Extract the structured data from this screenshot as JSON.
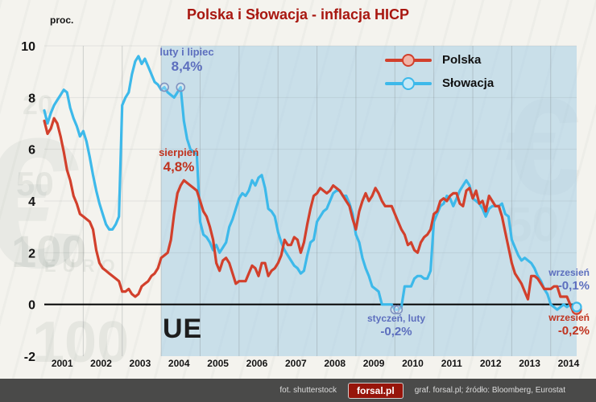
{
  "title": "Polska i Słowacja - inflacja HICP",
  "y_axis_unit_label": "proc.",
  "region_label": "UE",
  "legend": {
    "polska": "Polska",
    "slowacja": "Słowacja"
  },
  "annotations": {
    "sk_peak": {
      "line1": "luty i lipiec",
      "line2": "8,4%"
    },
    "pl_peak": {
      "line1": "sierpień",
      "line2": "4,8%"
    },
    "sk_low": {
      "line1": "styczeń, luty",
      "line2": "-0,2%"
    },
    "sk_last": {
      "line1": "wrzesień",
      "line2": "-0,1%"
    },
    "pl_last": {
      "line1": "wrzesień",
      "line2": "-0,2%"
    }
  },
  "footer": {
    "photo_credit": "fot. shutterstock",
    "logo": "forsal.pl",
    "credits": "graf. forsal.pl; źródło: Bloomberg, Eurostat"
  },
  "background_decor": [
    "€",
    "100",
    "50",
    "20",
    "EURO",
    "€",
    "100",
    "50"
  ],
  "colors": {
    "polska": "#d2402c",
    "slowacja": "#3db9ea",
    "title": "#a81710",
    "annotation_blue": "#5d6fbe",
    "annotation_red": "#c0331f",
    "eu_shade": "rgba(165,205,230,0.55)",
    "grid_vertical": "rgba(120,125,130,0.30)",
    "grid_horizontal": "rgba(120,125,130,0.14)",
    "zero_line": "#000000",
    "highlight_fill": "rgba(255,255,255,0.25)",
    "highlight_stroke": "#8093c0",
    "pl_marker_fill": "#f0b4a8",
    "sk_marker_fill": "#c6e9f7",
    "footer_bg": "#4a4a49",
    "logo_bg": "#97150b"
  },
  "chart_data": {
    "type": "line",
    "title": "Polska i Słowacja - inflacja HICP",
    "ylabel": "proc.",
    "ylim": [
      -2,
      10
    ],
    "yticks": [
      -2,
      0,
      2,
      4,
      6,
      8,
      10
    ],
    "x_years": [
      2001,
      2002,
      2003,
      2004,
      2005,
      2006,
      2007,
      2008,
      2009,
      2010,
      2011,
      2012,
      2013,
      2014
    ],
    "months_start": "2001-01",
    "months_end": "2014-09",
    "eu_shade_start_month_index": 36,
    "series": [
      {
        "name": "Polska",
        "color": "#d2402c",
        "values": [
          7.1,
          6.6,
          6.8,
          7.2,
          7.0,
          6.5,
          5.9,
          5.2,
          4.8,
          4.2,
          3.9,
          3.5,
          3.4,
          3.3,
          3.2,
          2.9,
          2.1,
          1.6,
          1.4,
          1.3,
          1.2,
          1.1,
          1.0,
          0.9,
          0.5,
          0.5,
          0.6,
          0.4,
          0.3,
          0.4,
          0.7,
          0.8,
          0.9,
          1.1,
          1.2,
          1.4,
          1.8,
          1.9,
          2.0,
          2.5,
          3.5,
          4.3,
          4.6,
          4.8,
          4.7,
          4.6,
          4.5,
          4.4,
          4.0,
          3.6,
          3.4,
          3.0,
          2.5,
          1.6,
          1.3,
          1.7,
          1.8,
          1.6,
          1.2,
          0.8,
          0.9,
          0.9,
          0.9,
          1.2,
          1.5,
          1.4,
          1.1,
          1.6,
          1.6,
          1.1,
          1.3,
          1.4,
          1.6,
          1.9,
          2.5,
          2.3,
          2.3,
          2.6,
          2.5,
          2.0,
          2.4,
          3.1,
          3.7,
          4.2,
          4.3,
          4.5,
          4.4,
          4.3,
          4.4,
          4.6,
          4.5,
          4.4,
          4.2,
          4.0,
          3.8,
          3.3,
          2.9,
          3.6,
          4.0,
          4.3,
          4.0,
          4.2,
          4.5,
          4.3,
          4.0,
          3.8,
          3.8,
          3.8,
          3.5,
          3.2,
          2.9,
          2.7,
          2.3,
          2.4,
          2.1,
          2.0,
          2.4,
          2.6,
          2.7,
          2.9,
          3.5,
          3.6,
          4.0,
          4.1,
          4.0,
          4.2,
          4.3,
          4.3,
          3.9,
          3.8,
          4.4,
          4.5,
          4.1,
          4.4,
          3.9,
          4.0,
          3.6,
          4.2,
          4.0,
          3.8,
          3.8,
          3.4,
          2.8,
          2.2,
          1.6,
          1.2,
          1.0,
          0.8,
          0.5,
          0.2,
          1.1,
          1.1,
          1.0,
          0.8,
          0.6,
          0.6,
          0.6,
          0.7,
          0.7,
          0.3,
          0.3,
          0.3,
          0.0,
          -0.3,
          -0.2
        ]
      },
      {
        "name": "Słowacja",
        "color": "#3db9ea",
        "values": [
          7.5,
          7.0,
          7.4,
          7.7,
          7.9,
          8.1,
          8.3,
          8.2,
          7.6,
          7.2,
          6.9,
          6.5,
          6.7,
          6.3,
          5.7,
          5.0,
          4.4,
          3.9,
          3.5,
          3.1,
          2.9,
          2.9,
          3.1,
          3.4,
          7.7,
          8.0,
          8.2,
          8.9,
          9.4,
          9.6,
          9.3,
          9.5,
          9.2,
          8.9,
          8.6,
          8.5,
          8.3,
          8.4,
          8.2,
          8.1,
          8.0,
          8.2,
          8.4,
          7.1,
          6.4,
          6.0,
          5.9,
          5.8,
          3.2,
          2.7,
          2.6,
          2.4,
          2.1,
          2.3,
          2.0,
          2.2,
          2.4,
          3.0,
          3.3,
          3.7,
          4.1,
          4.3,
          4.2,
          4.4,
          4.8,
          4.6,
          4.9,
          5.0,
          4.5,
          3.7,
          3.6,
          3.4,
          2.8,
          2.4,
          2.1,
          1.9,
          1.7,
          1.5,
          1.4,
          1.2,
          1.3,
          1.9,
          2.4,
          2.5,
          3.2,
          3.4,
          3.6,
          3.7,
          4.0,
          4.3,
          4.4,
          4.4,
          4.2,
          4.2,
          3.9,
          3.5,
          2.7,
          2.4,
          1.8,
          1.4,
          1.1,
          0.7,
          0.6,
          0.5,
          0.0,
          0.0,
          0.0,
          0.0,
          -0.2,
          -0.2,
          -0.1,
          0.7,
          0.7,
          0.7,
          1.0,
          1.1,
          1.1,
          1.0,
          1.0,
          1.3,
          3.2,
          3.5,
          3.8,
          3.9,
          4.2,
          4.1,
          3.8,
          4.1,
          4.4,
          4.6,
          4.8,
          4.6,
          4.1,
          4.0,
          3.9,
          3.7,
          3.4,
          3.7,
          3.8,
          3.8,
          3.8,
          3.9,
          3.5,
          3.4,
          2.5,
          2.2,
          1.9,
          1.7,
          1.8,
          1.7,
          1.6,
          1.4,
          1.1,
          0.9,
          0.6,
          0.4,
          0.0,
          -0.1,
          -0.2,
          -0.1,
          0.0,
          -0.1,
          0.0,
          -0.2,
          -0.1
        ]
      }
    ],
    "highlight_points": [
      {
        "series": 1,
        "month_index": 37,
        "value": 8.4,
        "label": "luty 2004"
      },
      {
        "series": 1,
        "month_index": 42,
        "value": 8.4,
        "label": "lipiec 2004"
      },
      {
        "series": 1,
        "month_index": 108,
        "value": -0.2,
        "label": "styczeń 2010"
      },
      {
        "series": 1,
        "month_index": 109,
        "value": -0.2,
        "label": "luty 2010"
      }
    ],
    "end_markers": [
      {
        "series": 0,
        "value": -0.2,
        "label": "wrzesień 2014 Polska"
      },
      {
        "series": 1,
        "value": -0.1,
        "label": "wrzesień 2014 Słowacja"
      }
    ]
  }
}
